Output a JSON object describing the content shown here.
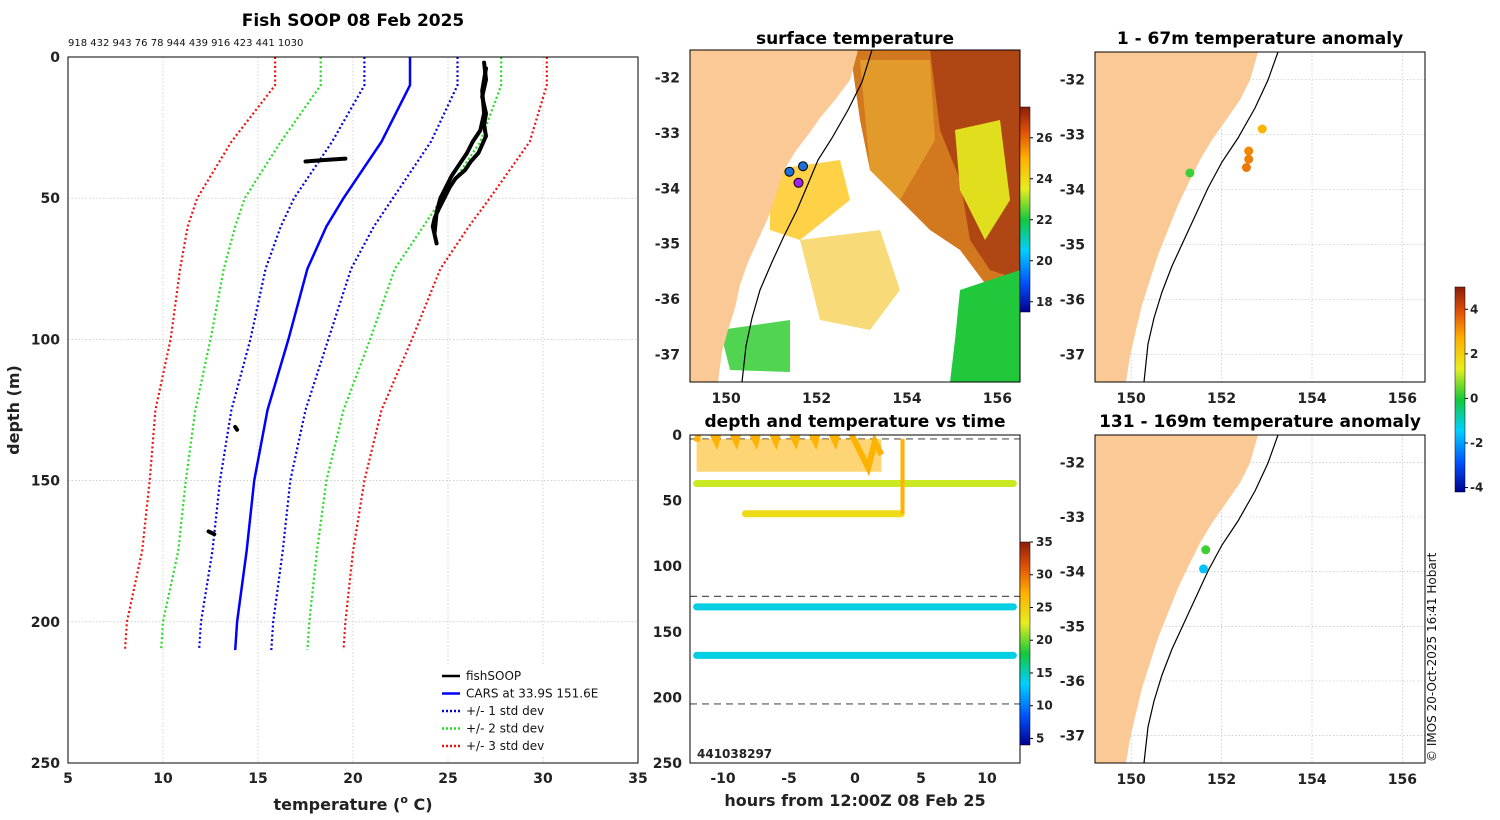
{
  "colors": {
    "land": "#fbc996",
    "cars": "#0000ff",
    "std1": "#0000e0",
    "std2": "#22dd22",
    "std3": "#ee1111",
    "fishsoop": "#000000"
  },
  "chart_data": [
    {
      "id": "profile",
      "type": "line",
      "title": "Fish SOOP 08 Feb 2025",
      "subtitle": "918 432 943 76 78 944 439 916 423 441 1030",
      "xlabel": "temperature (° C)",
      "xlabel_main": "temperature (",
      "xlabel_sup": "o",
      "xlabel_end": " C)",
      "ylabel": "depth (m)",
      "xlim": [
        5,
        35
      ],
      "ylim": [
        0,
        250
      ],
      "xticks": [
        5,
        10,
        15,
        20,
        25,
        30,
        35
      ],
      "yticks": [
        0,
        50,
        100,
        150,
        200,
        250
      ],
      "grid": true,
      "legend_position": "bottom-right",
      "legend": [
        {
          "label": "fishSOOP",
          "color": "fishsoop",
          "style": "solid"
        },
        {
          "label": "CARS at 33.9S 151.6E",
          "color": "cars",
          "style": "solid"
        },
        {
          "label": "+/- 1 std dev",
          "color": "std1",
          "style": "dotted"
        },
        {
          "label": "+/- 2 std dev",
          "color": "std2",
          "style": "dotted"
        },
        {
          "label": "+/- 3 std dev",
          "color": "std3",
          "style": "dotted"
        }
      ],
      "depths": [
        0,
        10,
        30,
        50,
        60,
        75,
        100,
        125,
        150,
        175,
        200,
        210
      ],
      "series": [
        {
          "name": "CARS at 33.9S 151.6E",
          "color": "cars",
          "style": "solid",
          "values": [
            23.0,
            23.0,
            21.5,
            19.5,
            18.6,
            17.6,
            16.6,
            15.5,
            14.8,
            14.4,
            13.9,
            13.8
          ]
        },
        {
          "name": "-1 std",
          "color": "std1",
          "style": "dotted",
          "values": [
            20.6,
            20.6,
            18.9,
            16.9,
            16.2,
            15.4,
            14.6,
            13.6,
            13.0,
            12.6,
            12.0,
            11.9
          ]
        },
        {
          "name": "+1 std",
          "color": "std1",
          "style": "dotted",
          "values": [
            25.5,
            25.5,
            24.1,
            22.1,
            21.1,
            19.9,
            18.7,
            17.5,
            16.7,
            16.3,
            15.8,
            15.7
          ]
        },
        {
          "name": "-2 std",
          "color": "std2",
          "style": "dotted",
          "values": [
            18.3,
            18.3,
            16.2,
            14.3,
            13.8,
            13.2,
            12.5,
            11.7,
            11.2,
            10.8,
            10.0,
            9.9
          ]
        },
        {
          "name": "+2 std",
          "color": "std2",
          "style": "dotted",
          "values": [
            27.8,
            27.8,
            26.7,
            24.7,
            23.7,
            22.2,
            20.9,
            19.5,
            18.6,
            18.1,
            17.7,
            17.6
          ]
        },
        {
          "name": "-3 std",
          "color": "std3",
          "style": "dotted",
          "values": [
            15.9,
            15.9,
            13.6,
            11.8,
            11.3,
            10.9,
            10.4,
            9.6,
            9.3,
            8.9,
            8.1,
            8.0
          ]
        },
        {
          "name": "+3 std",
          "color": "std3",
          "style": "dotted",
          "values": [
            30.2,
            30.2,
            29.3,
            27.2,
            26.1,
            24.6,
            23.1,
            21.5,
            20.6,
            20.0,
            19.6,
            19.5
          ]
        }
      ],
      "fishsoop": {
        "name": "fishSOOP",
        "color": "fishsoop",
        "casts": [
          {
            "temp": [
              26.9,
              27.0,
              26.8,
              27.0,
              26.9,
              27.0,
              26.8,
              26.6,
              26.2,
              25.9,
              25.4,
              25.1,
              24.8,
              24.5,
              24.3,
              24.2,
              24.3,
              24.4
            ],
            "depth": [
              2,
              8,
              14,
              20,
              24,
              28,
              31,
              34,
              37,
              40,
              43,
              46,
              50,
              54,
              57,
              60,
              63,
              66
            ]
          },
          {
            "temp": [
              27.0,
              26.8,
              26.9,
              26.7,
              26.3,
              26.0,
              25.6,
              25.2,
              24.9,
              24.6,
              24.4,
              24.3
            ],
            "depth": [
              4,
              12,
              20,
              26,
              30,
              34,
              38,
              42,
              46,
              50,
              55,
              62
            ]
          },
          {
            "temp": [
              17.5,
              18.4,
              19.6
            ],
            "depth": [
              37,
              36.5,
              36
            ]
          },
          {
            "temp": [
              13.8,
              13.9
            ],
            "depth": [
              131,
              132
            ]
          },
          {
            "temp": [
              12.4,
              12.7
            ],
            "depth": [
              168,
              169
            ]
          }
        ]
      }
    },
    {
      "id": "surface",
      "type": "heatmap",
      "title": "surface temperature",
      "xlim": [
        149.2,
        156.5
      ],
      "ylim": [
        -37.5,
        -31.5
      ],
      "xticks": [
        150,
        152,
        154,
        156
      ],
      "yticks": [
        -32,
        -33,
        -34,
        -35,
        -36,
        -37
      ],
      "colorbar": {
        "range": [
          17.5,
          27.5
        ],
        "ticks": [
          18,
          20,
          22,
          24,
          26
        ]
      },
      "markers": [
        {
          "lon": 151.4,
          "lat": -33.7,
          "value": 20,
          "color": "#1e6fd9"
        },
        {
          "lon": 151.7,
          "lat": -33.6,
          "value": 20,
          "color": "#1e6fd9"
        },
        {
          "lon": 151.6,
          "lat": -33.9,
          "value": 18,
          "color": "#a020f0"
        }
      ]
    },
    {
      "id": "time",
      "type": "scatter",
      "title": "depth and temperature vs time",
      "xlabel": "hours from 12:00Z 08 Feb 25",
      "xlim": [
        -12.5,
        12.5
      ],
      "ylim": [
        0,
        250
      ],
      "xticks": [
        -10,
        -5,
        0,
        5,
        10
      ],
      "yticks": [
        0,
        50,
        100,
        150,
        200,
        250
      ],
      "dashed_depths": [
        3,
        123,
        205
      ],
      "overlap_label": "441038297",
      "colorbar": {
        "range": [
          4,
          35
        ],
        "ticks": [
          5,
          10,
          15,
          20,
          25,
          30,
          35
        ]
      },
      "bands": [
        {
          "depth": 37,
          "temp": 22,
          "hours": [
            -12,
            12
          ]
        },
        {
          "depth": 131,
          "temp": 14,
          "hours": [
            -12,
            12
          ]
        },
        {
          "depth": 168,
          "temp": 14,
          "hours": [
            -12,
            12
          ]
        },
        {
          "depth": 60,
          "temp": 24,
          "hours": [
            -8.3,
            3.5
          ]
        },
        {
          "depth": 15,
          "temp": 27,
          "hours": [
            -12,
            2
          ]
        }
      ]
    },
    {
      "id": "anomaly_shallow",
      "type": "scatter",
      "title": "1 - 67m temperature anomaly",
      "xlim": [
        149.2,
        156.5
      ],
      "ylim": [
        -37.5,
        -31.5
      ],
      "xticks": [
        150,
        152,
        154,
        156
      ],
      "yticks": [
        -32,
        -33,
        -34,
        -35,
        -36,
        -37
      ],
      "points": [
        {
          "lon": 151.3,
          "lat": -33.7,
          "anomaly": 0.2
        },
        {
          "lon": 152.9,
          "lat": -32.9,
          "anomaly": 2.6
        },
        {
          "lon": 152.6,
          "lat": -33.3,
          "anomaly": 3.2
        },
        {
          "lon": 152.6,
          "lat": -33.45,
          "anomaly": 3.3
        },
        {
          "lon": 152.55,
          "lat": -33.6,
          "anomaly": 3.4
        }
      ]
    },
    {
      "id": "anomaly_deep",
      "type": "scatter",
      "title": "131 - 169m temperature anomaly",
      "xlim": [
        149.2,
        156.5
      ],
      "ylim": [
        -37.5,
        -31.5
      ],
      "xticks": [
        150,
        152,
        154,
        156
      ],
      "yticks": [
        -32,
        -33,
        -34,
        -35,
        -36,
        -37
      ],
      "points": [
        {
          "lon": 151.65,
          "lat": -33.6,
          "anomaly": 0.2
        },
        {
          "lon": 151.6,
          "lat": -33.95,
          "anomaly": -1.6
        }
      ],
      "colorbar": {
        "range": [
          -4.2,
          5.0
        ],
        "ticks": [
          4,
          2,
          0,
          -2,
          -4
        ]
      }
    }
  ],
  "credit": "© IMOS 20-Oct-2025 16:41 Hobart"
}
